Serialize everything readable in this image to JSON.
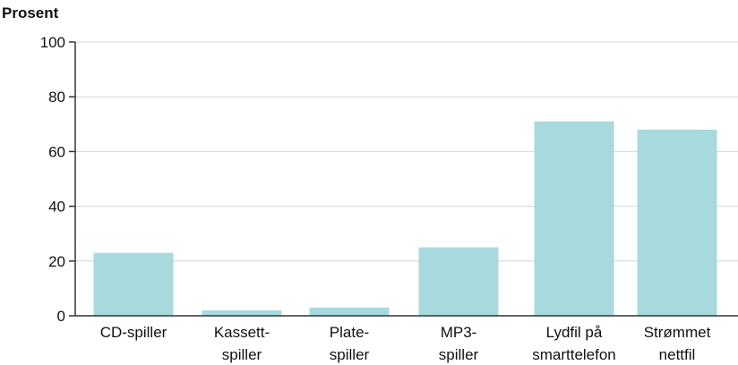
{
  "chart_data": {
    "type": "bar",
    "ylabel": "Prosent",
    "xlabel": "",
    "title": "",
    "ylim": [
      0,
      100
    ],
    "yticks": [
      0,
      20,
      40,
      60,
      80,
      100
    ],
    "grid": true,
    "categories": [
      [
        "CD-spiller"
      ],
      [
        "Kassett-",
        "spiller"
      ],
      [
        "Plate-",
        "spiller"
      ],
      [
        "MP3-",
        "spiller"
      ],
      [
        "Lydfil på",
        "smarttelefon"
      ],
      [
        "Strømmet",
        "nettfil"
      ]
    ],
    "values": [
      23,
      2,
      3,
      25,
      71,
      68
    ],
    "colors": {
      "bar": "#a8d9de",
      "grid": "#d4d4d4",
      "axis": "#333333",
      "text": "#111111"
    }
  }
}
